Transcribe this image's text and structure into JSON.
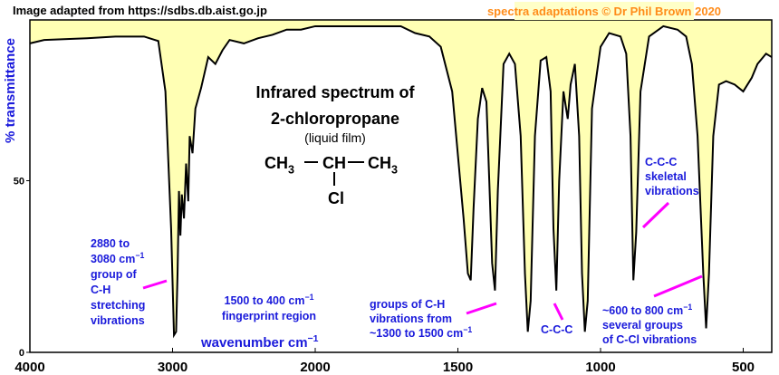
{
  "chart_data": {
    "type": "line",
    "source": "Image adapted from https://sdbs.db.aist.go.jp",
    "credit": "spectra adaptations © Dr Phil Brown 2020",
    "title": [
      "Infrared spectrum of",
      "2-chloropropane"
    ],
    "subtitle": "(liquid film)",
    "formula": {
      "groups": [
        {
          "text": "CH",
          "sub": "3"
        },
        {
          "text": "CH"
        },
        {
          "text": "CH",
          "sub": "3"
        }
      ],
      "branch": "Cl"
    },
    "xlabel": {
      "text": "wavenumber cm",
      "sup": "−1"
    },
    "ylabel": "% transmittance",
    "xlim": [
      4000,
      400
    ],
    "xscale_break": 2000,
    "xticks": [
      4000,
      3000,
      2000,
      1500,
      1000,
      500
    ],
    "ylim": [
      0,
      100
    ],
    "yticks": [
      0,
      50
    ],
    "grid": false,
    "color": "#000000",
    "fill_color": "#ffffb4",
    "x": [
      4000,
      3900,
      3600,
      3400,
      3200,
      3100,
      3050,
      3010,
      2990,
      2975,
      2965,
      2955,
      2945,
      2935,
      2920,
      2905,
      2890,
      2880,
      2860,
      2840,
      2800,
      2750,
      2700,
      2650,
      2600,
      2500,
      2400,
      2300,
      2200,
      2100,
      2000,
      1900,
      1800,
      1700,
      1650,
      1600,
      1560,
      1520,
      1480,
      1465,
      1455,
      1445,
      1430,
      1415,
      1400,
      1390,
      1380,
      1370,
      1360,
      1340,
      1320,
      1300,
      1280,
      1265,
      1255,
      1245,
      1230,
      1210,
      1190,
      1175,
      1165,
      1155,
      1145,
      1130,
      1115,
      1105,
      1090,
      1075,
      1065,
      1055,
      1045,
      1030,
      1000,
      970,
      930,
      910,
      895,
      885,
      875,
      860,
      830,
      780,
      730,
      700,
      680,
      660,
      640,
      630,
      620,
      605,
      585,
      560,
      530,
      500,
      470,
      450,
      420,
      400
    ],
    "values": [
      90,
      91,
      91.5,
      92,
      92,
      90.7,
      76,
      36,
      5,
      6,
      23,
      47,
      34,
      46,
      39,
      55,
      44,
      63,
      58,
      71,
      77,
      86,
      84,
      88,
      91,
      90,
      91.5,
      92.5,
      94,
      94,
      95,
      95,
      95,
      95,
      93,
      92,
      89,
      76,
      39,
      23,
      21,
      42,
      68,
      77,
      73,
      50,
      26,
      18,
      47,
      84,
      87,
      84,
      63,
      23,
      6,
      15,
      63,
      85,
      86,
      76,
      36,
      18,
      50,
      76,
      68,
      78,
      84,
      63,
      23,
      6,
      15,
      71,
      89,
      93,
      92,
      87,
      63,
      21,
      35,
      76,
      92,
      95,
      94,
      92,
      84,
      63,
      23,
      7,
      23,
      63,
      78,
      79,
      78,
      76,
      80,
      84,
      87,
      86
    ],
    "annotations": [
      {
        "lines": [
          "2880 to",
          {
            "text": "3080 cm",
            "sup": "−1"
          },
          "group of",
          "C-H",
          "stretching",
          "vibrations"
        ]
      },
      {
        "lines": [
          {
            "text": "1500 to 400 cm",
            "sup": "−1"
          },
          "fingerprint region"
        ]
      },
      {
        "lines": [
          "groups of C-H",
          "vibrations from",
          {
            "text": "~1300 to 1500 cm",
            "sup": "−1"
          }
        ]
      },
      {
        "lines": [
          "C-C-C"
        ]
      },
      {
        "lines": [
          "C-C-C",
          "skeletal",
          "vibrations"
        ]
      },
      {
        "lines": [
          {
            "text": "~600 to 800 cm",
            "sup": "−1"
          },
          "several groups",
          "of C-Cl vibrations"
        ]
      }
    ]
  }
}
